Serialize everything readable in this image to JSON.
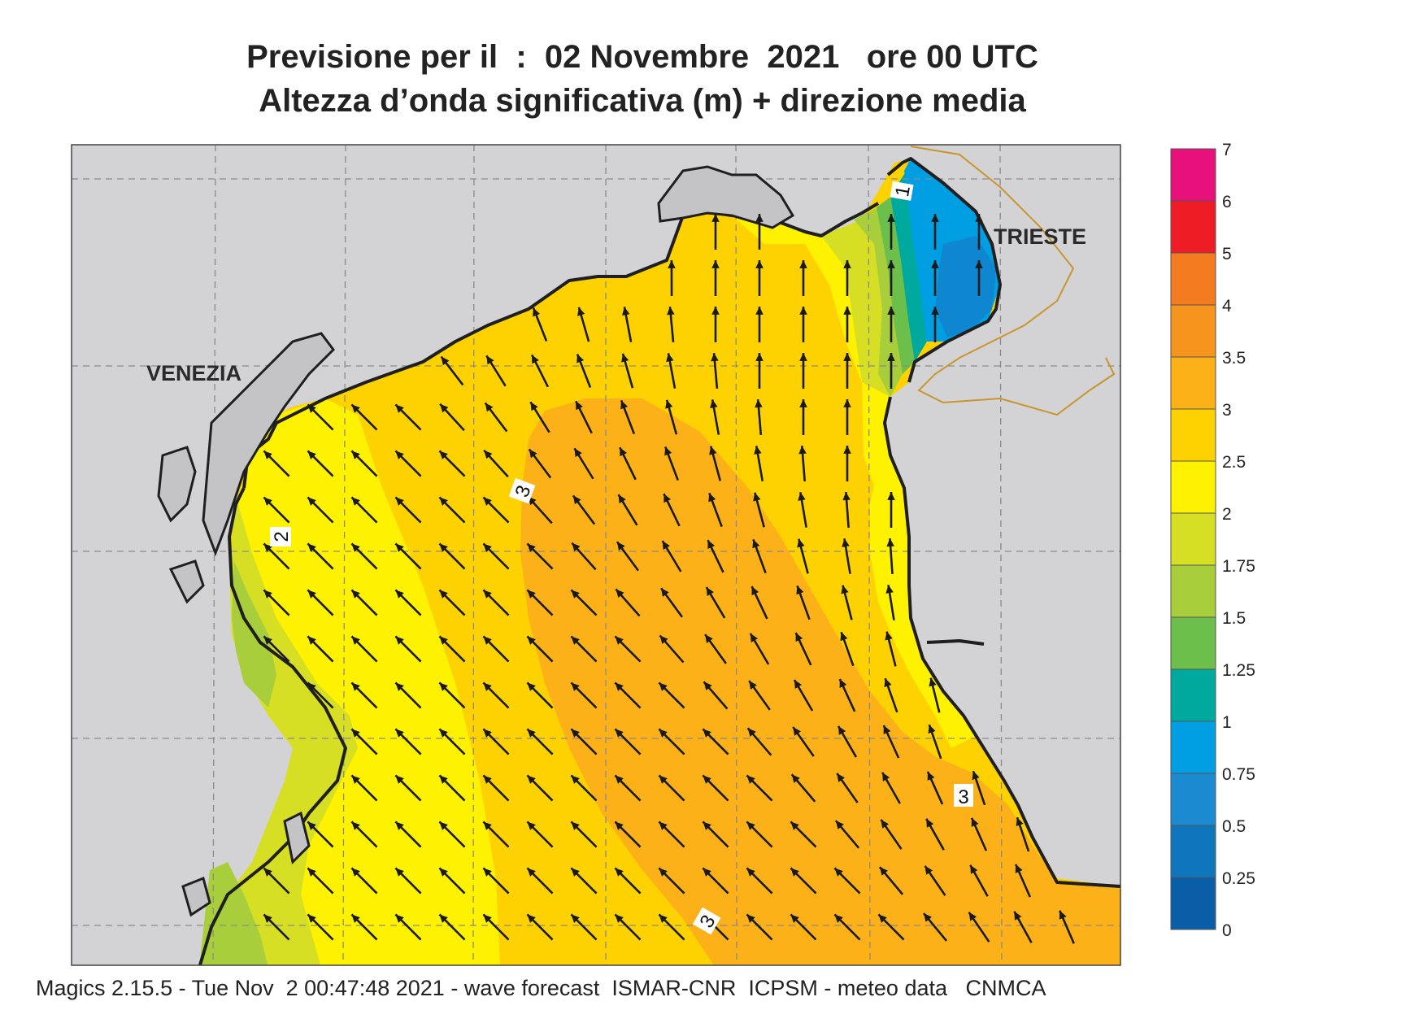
{
  "title": {
    "line1": "Previsione per il  :  02 Novembre  2021   ore 00 UTC",
    "line2": "Altezza d’onda significativa (m) + direzione media"
  },
  "map": {
    "places": [
      "VENEZIA",
      "TRIESTE"
    ],
    "contour_labels": [
      "2",
      "3",
      "3",
      "3",
      "1"
    ],
    "colors": {
      "land": "#d3d3d5",
      "sea_2_2_5": "#fff200",
      "sea_2_5_3": "#fdd200",
      "sea_3_3_5": "#fbb117",
      "sea_1_75_2": "#d6df23",
      "sea_1_5_1_75": "#a8cf3b",
      "sea_1_25_1_5": "#6cbf4b",
      "sea_1_1_25": "#00a99d",
      "sea_0_75_1": "#009fe3",
      "sea_0_5_0_75": "#0e86d0",
      "arrow": "#1a1a1a"
    },
    "arrow_direction": "north-west"
  },
  "legend": {
    "ticks": [
      "7",
      "6",
      "5",
      "4",
      "3.5",
      "3",
      "2.5",
      "2",
      "1.75",
      "1.5",
      "1.25",
      "1",
      "0.75",
      "0.5",
      "0.25",
      "0"
    ],
    "colors": [
      "#e8107a",
      "#ee1c25",
      "#f47b20",
      "#f7941d",
      "#fbb117",
      "#fdd200",
      "#fff200",
      "#d6df23",
      "#a8cf3b",
      "#6cbf4b",
      "#00a99d",
      "#009fe3",
      "#1b8ad0",
      "#0e76bc",
      "#0a5ea8"
    ]
  },
  "footer": "Magics 2.15.5 - Tue Nov  2 00:47:48 2021 - wave forecast  ISMAR-CNR  ICPSM - meteo data   CNMCA"
}
